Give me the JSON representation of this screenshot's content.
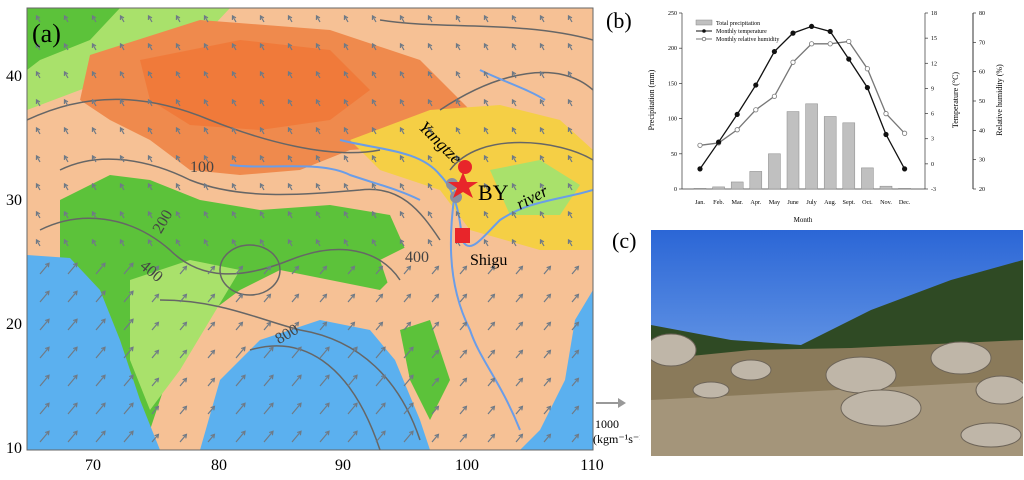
{
  "panel_a": {
    "label": "(a)",
    "x_ticks": [
      "70",
      "80",
      "90",
      "100",
      "110"
    ],
    "y_ticks": [
      "40",
      "30",
      "20",
      "10"
    ],
    "contour_labels": [
      "100",
      "200",
      "400",
      "400",
      "800"
    ],
    "site_label": "BY",
    "site2_label": "Shigu",
    "river_label_1": "Yangtze",
    "river_label_2": "river",
    "ref_vector_value": "1000",
    "ref_vector_unit": "(kgm⁻¹s⁻¹)",
    "colors": {
      "ocean": "#5bb0ef",
      "lowland": "#5cc23a",
      "light_green": "#a9e16b",
      "plain": "#f6c195",
      "plateau": "#ef8a4d",
      "basin": "#f5cf45",
      "site": "#e8252a"
    }
  },
  "panel_b": {
    "label": "(b)"
  },
  "panel_c": {
    "label": "(c)"
  },
  "chart_data": {
    "type": "bar+line",
    "categories": [
      "Jan.",
      "Feb.",
      "Mar.",
      "Apr.",
      "May",
      "June",
      "July",
      "Aug.",
      "Sept.",
      "Oct.",
      "Nov.",
      "Dec."
    ],
    "xlabel": "Month",
    "series": [
      {
        "name": "Total precipitation",
        "type": "bar",
        "axis": "left",
        "values": [
          1,
          3,
          10,
          25,
          50,
          110,
          121,
          103,
          94,
          30,
          4,
          1
        ]
      },
      {
        "name": "Monthly temperature",
        "type": "line",
        "axis": "right1",
        "values": [
          -0.6,
          2.6,
          5.9,
          9.4,
          13.4,
          15.6,
          16.4,
          15.8,
          12.5,
          9.1,
          3.5,
          -0.6
        ]
      },
      {
        "name": "Monthly relative humidity",
        "type": "line",
        "axis": "right2",
        "values": [
          34.9,
          35.7,
          40.2,
          47,
          51.6,
          63.2,
          69.5,
          69.5,
          70.3,
          61,
          45.7,
          39
        ]
      }
    ],
    "axes": {
      "left": {
        "label": "Precipitation (mm)",
        "range": [
          0,
          250
        ],
        "ticks": [
          "0",
          "50",
          "100",
          "150",
          "200",
          "250"
        ]
      },
      "right1": {
        "label": "Temperature (°C)",
        "range": [
          -3,
          18
        ],
        "ticks": [
          "-3",
          "0",
          "3",
          "6",
          "9",
          "12",
          "15",
          "18"
        ]
      },
      "right2": {
        "label": "Relative humidity (%)",
        "range": [
          20,
          80
        ],
        "ticks": [
          "20",
          "30",
          "40",
          "50",
          "60",
          "70",
          "80"
        ]
      }
    },
    "legend": "top-left",
    "colors": {
      "bar": "#c0c0c0",
      "temperature": "#111111",
      "humidity": "#777777"
    }
  }
}
